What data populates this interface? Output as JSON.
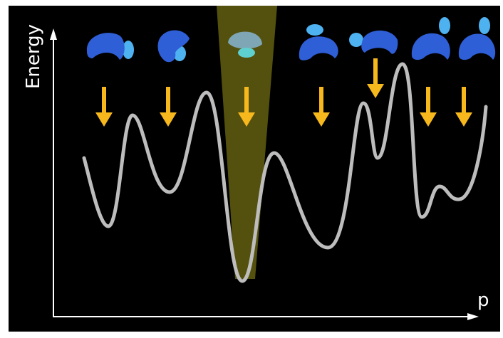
{
  "axes": {
    "y_label": "Energy",
    "x_label": "p"
  }
}
